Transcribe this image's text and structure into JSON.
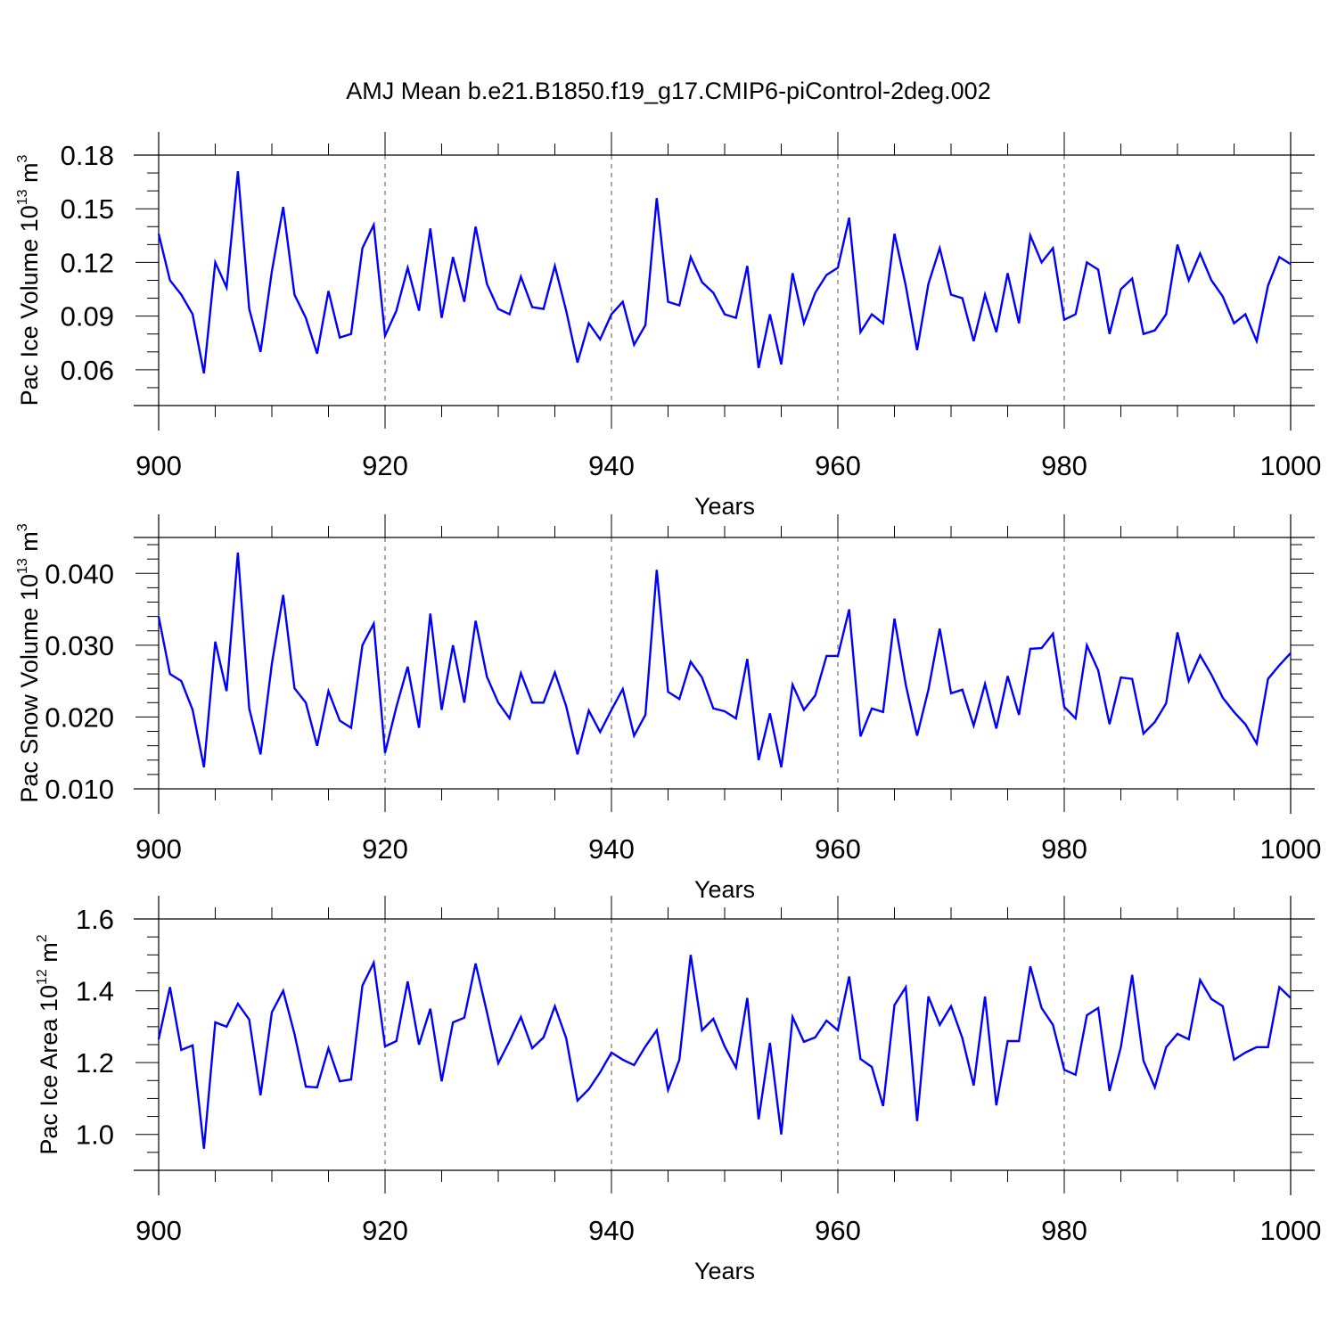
{
  "chart_data": [
    {
      "type": "line",
      "title": "AMJ Mean b.e21.B1850.f19_g17.CMIP6-piControl-2deg.002",
      "xlabel": "Years",
      "ylabel": {
        "text": "Pac Ice Volume 10",
        "exp": "13",
        "unit": " m",
        "unit_exp": "3"
      },
      "xlim": [
        900,
        1000
      ],
      "ylim": [
        0.04,
        0.18
      ],
      "xticks": [
        900,
        920,
        940,
        960,
        980,
        1000
      ],
      "yticks": [
        0.06,
        0.09,
        0.12,
        0.15,
        0.18
      ],
      "ytick_labels": [
        "0.06",
        "0.09",
        "0.12",
        "0.15",
        "0.18"
      ],
      "yminor_step": 0.01,
      "grid": "dashed vertical at major x ticks",
      "line_color": "#0000ff",
      "x_start": 900,
      "values": [
        0.136,
        0.11,
        0.102,
        0.091,
        0.058,
        0.12,
        0.106,
        0.171,
        0.094,
        0.07,
        0.115,
        0.151,
        0.102,
        0.089,
        0.069,
        0.104,
        0.078,
        0.08,
        0.128,
        0.141,
        0.079,
        0.093,
        0.117,
        0.093,
        0.139,
        0.089,
        0.123,
        0.098,
        0.14,
        0.108,
        0.094,
        0.091,
        0.112,
        0.095,
        0.094,
        0.118,
        0.093,
        0.064,
        0.086,
        0.077,
        0.091,
        0.098,
        0.074,
        0.085,
        0.156,
        0.098,
        0.096,
        0.123,
        0.109,
        0.103,
        0.091,
        0.089,
        0.118,
        0.061,
        0.091,
        0.063,
        0.114,
        0.086,
        0.103,
        0.113,
        0.117,
        0.145,
        0.081,
        0.091,
        0.086,
        0.136,
        0.107,
        0.071,
        0.108,
        0.128,
        0.102,
        0.1,
        0.076,
        0.102,
        0.081,
        0.114,
        0.086,
        0.135,
        0.12,
        0.128,
        0.088,
        0.091,
        0.12,
        0.116,
        0.08,
        0.105,
        0.111,
        0.08,
        0.082,
        0.091,
        0.13,
        0.11,
        0.125,
        0.11,
        0.101,
        0.086,
        0.091,
        0.076,
        0.107,
        0.123,
        0.119
      ]
    },
    {
      "type": "line",
      "xlabel": "Years",
      "ylabel": {
        "text": "Pac Snow Volume 10",
        "exp": "13",
        "unit": " m",
        "unit_exp": "3"
      },
      "xlim": [
        900,
        1000
      ],
      "ylim": [
        0.01,
        0.045
      ],
      "xticks": [
        900,
        920,
        940,
        960,
        980,
        1000
      ],
      "yticks": [
        0.01,
        0.02,
        0.03,
        0.04
      ],
      "ytick_labels": [
        "0.010",
        "0.020",
        "0.030",
        "0.040"
      ],
      "yminor_step": 0.002,
      "grid": "dashed vertical at major x ticks",
      "line_color": "#0000ff",
      "x_start": 900,
      "values": [
        0.034,
        0.026,
        0.025,
        0.021,
        0.013,
        0.0305,
        0.0236,
        0.0429,
        0.0212,
        0.0148,
        0.0274,
        0.037,
        0.024,
        0.022,
        0.016,
        0.0236,
        0.0195,
        0.0185,
        0.03,
        0.033,
        0.015,
        0.0214,
        0.027,
        0.0185,
        0.0344,
        0.021,
        0.03,
        0.022,
        0.0334,
        0.0256,
        0.022,
        0.0198,
        0.0261,
        0.022,
        0.022,
        0.0262,
        0.0215,
        0.0148,
        0.0209,
        0.0179,
        0.021,
        0.0239,
        0.0174,
        0.0203,
        0.0405,
        0.0235,
        0.0225,
        0.0277,
        0.0255,
        0.0212,
        0.0208,
        0.0198,
        0.0281,
        0.014,
        0.0205,
        0.013,
        0.0245,
        0.021,
        0.023,
        0.0285,
        0.0285,
        0.035,
        0.0173,
        0.0212,
        0.0207,
        0.0337,
        0.0245,
        0.0174,
        0.0238,
        0.0323,
        0.0233,
        0.0238,
        0.0188,
        0.0246,
        0.0184,
        0.0257,
        0.0203,
        0.0295,
        0.0296,
        0.0316,
        0.0214,
        0.0198,
        0.03,
        0.0265,
        0.019,
        0.0255,
        0.0253,
        0.0177,
        0.0193,
        0.0219,
        0.0318,
        0.025,
        0.0286,
        0.0259,
        0.0227,
        0.0207,
        0.019,
        0.0163,
        0.0253,
        0.0272,
        0.0289
      ]
    },
    {
      "type": "line",
      "xlabel": "Years",
      "ylabel": {
        "text": "Pac Ice Area 10",
        "exp": "12",
        "unit": " m",
        "unit_exp": "2"
      },
      "xlim": [
        900,
        1000
      ],
      "ylim": [
        0.9,
        1.6
      ],
      "xticks": [
        900,
        920,
        940,
        960,
        980,
        1000
      ],
      "yticks": [
        1.0,
        1.2,
        1.4,
        1.6
      ],
      "ytick_labels": [
        "1.0",
        "1.2",
        "1.4",
        "1.6"
      ],
      "yminor_step": 0.05,
      "grid": "dashed vertical at major x ticks",
      "line_color": "#0000ff",
      "x_start": 900,
      "values": [
        1.265,
        1.41,
        1.235,
        1.248,
        0.96,
        1.312,
        1.3,
        1.364,
        1.32,
        1.109,
        1.34,
        1.4,
        1.28,
        1.133,
        1.131,
        1.24,
        1.148,
        1.153,
        1.414,
        1.478,
        1.245,
        1.26,
        1.426,
        1.25,
        1.35,
        1.148,
        1.312,
        1.325,
        1.476,
        1.34,
        1.198,
        1.26,
        1.327,
        1.24,
        1.27,
        1.357,
        1.268,
        1.094,
        1.126,
        1.173,
        1.228,
        1.208,
        1.193,
        1.245,
        1.29,
        1.124,
        1.208,
        1.5,
        1.29,
        1.322,
        1.245,
        1.186,
        1.38,
        1.042,
        1.255,
        1.0,
        1.327,
        1.258,
        1.27,
        1.317,
        1.29,
        1.44,
        1.21,
        1.188,
        1.079,
        1.36,
        1.41,
        1.037,
        1.384,
        1.305,
        1.357,
        1.268,
        1.136,
        1.384,
        1.081,
        1.26,
        1.26,
        1.468,
        1.352,
        1.305,
        1.18,
        1.166,
        1.332,
        1.352,
        1.121,
        1.243,
        1.444,
        1.205,
        1.131,
        1.243,
        1.28,
        1.265,
        1.43,
        1.377,
        1.357,
        1.208,
        1.228,
        1.243,
        1.243,
        1.41,
        1.38
      ]
    }
  ]
}
